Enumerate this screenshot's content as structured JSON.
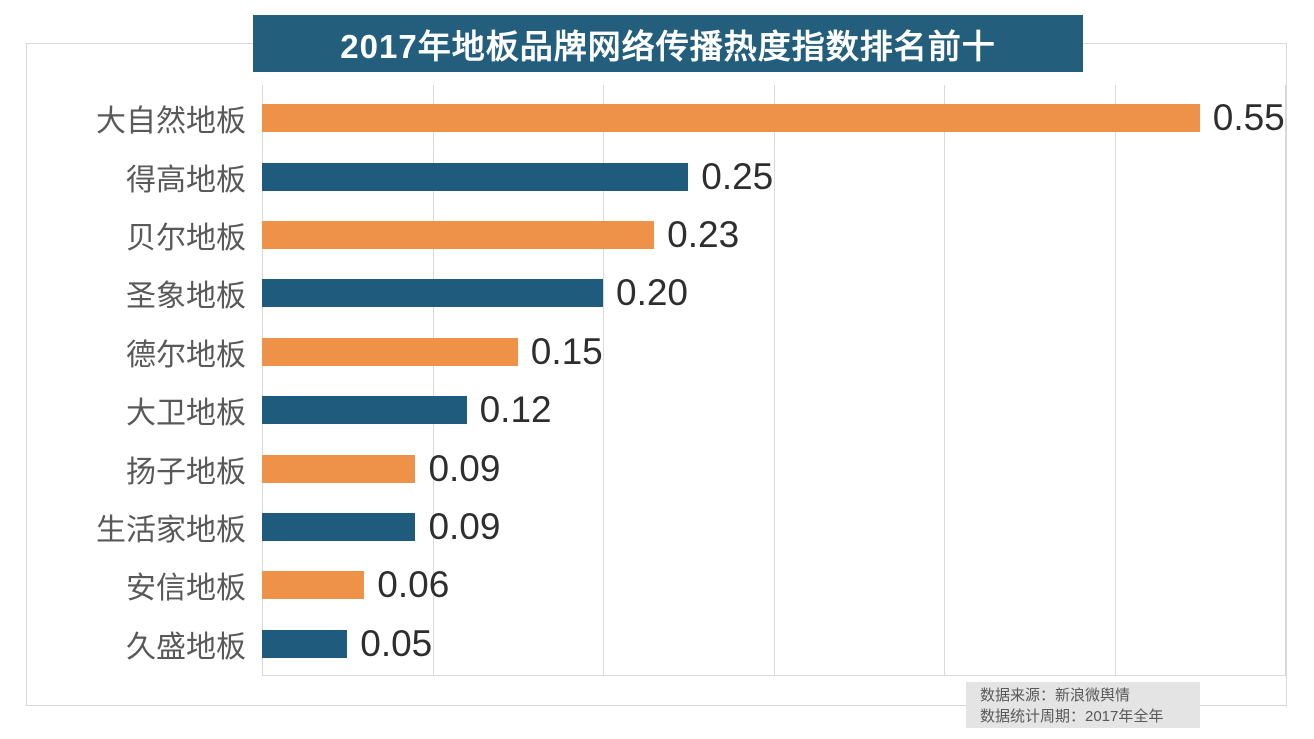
{
  "title": {
    "text": "2017年地板品牌网络传播热度指数排名前十"
  },
  "chart_data": {
    "type": "bar",
    "orientation": "horizontal",
    "title": "2017年地板品牌网络传播热度指数排名前十",
    "categories": [
      "大自然地板",
      "得高地板",
      "贝尔地板",
      "圣象地板",
      "德尔地板",
      "大卫地板",
      "扬子地板",
      "生活家地板",
      "安信地板",
      "久盛地板"
    ],
    "values": [
      0.55,
      0.25,
      0.23,
      0.2,
      0.15,
      0.12,
      0.09,
      0.09,
      0.06,
      0.05
    ],
    "value_labels": [
      "0.55",
      "0.25",
      "0.23",
      "0.20",
      "0.15",
      "0.12",
      "0.09",
      "0.09",
      "0.06",
      "0.05"
    ],
    "xlabel": "",
    "ylabel": "",
    "xlim": [
      0,
      0.6
    ],
    "gridline_interval": 0.1,
    "grid": true,
    "legend": false,
    "data_labels": true
  },
  "source_note": {
    "line1": "数据来源：新浪微舆情",
    "line2": "数据统计周期：2017年全年"
  },
  "colors": {
    "bar_orange": "#ef9249",
    "bar_blue": "#1f5b7c",
    "title_banner_bg": "#235e7d",
    "title_text": "#ffffff",
    "gridline": "#d9d9d9",
    "panel_border": "#d9d9d9",
    "category_text": "#595959",
    "value_text": "#2e2e2e",
    "source_box_bg": "#e4e4e4",
    "source_text": "#595959",
    "background": "#ffffff"
  }
}
